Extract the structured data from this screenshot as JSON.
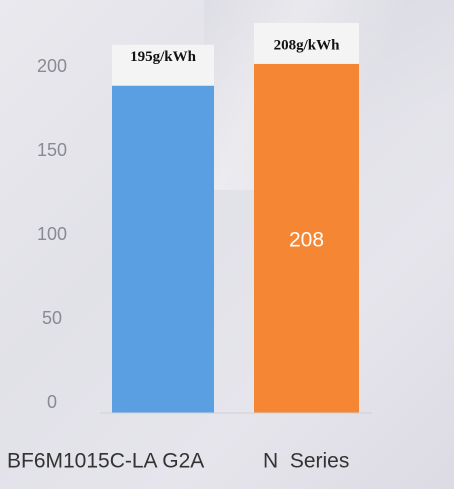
{
  "chart_data": {
    "type": "bar",
    "categories": [
      "BF6M1015C-LA G2A",
      "N  Series"
    ],
    "values": [
      195,
      208
    ],
    "value_labels": [
      "195g/kWh",
      "208g/kWh"
    ],
    "inside_labels": [
      "",
      "208"
    ],
    "colors": [
      "#5b9fe3",
      "#f58634"
    ],
    "label_box_color": "#f4f4f4",
    "y_ticks": [
      0,
      50,
      100,
      150,
      200
    ],
    "ylim": [
      0,
      233
    ],
    "grid": false,
    "title": "",
    "xlabel": "",
    "ylabel": ""
  }
}
